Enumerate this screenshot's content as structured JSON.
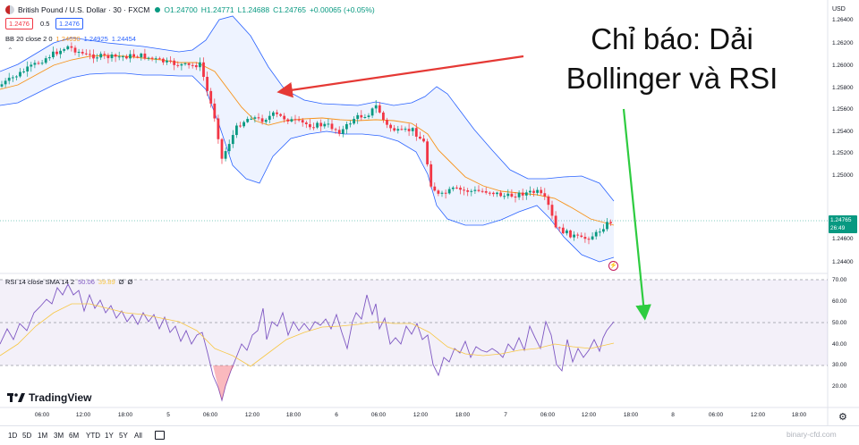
{
  "header": {
    "symbol_title": "British Pound / U.S. Dollar · 30 · FXCM",
    "ohlc_open": "O1.24700",
    "ohlc_high": "H1.24771",
    "ohlc_low": "L1.24688",
    "ohlc_close": "C1.24765",
    "ohlc_change": "+0.00065 (+0.05%)",
    "sell_price": "1.2476",
    "spread": "0.5",
    "buy_price": "1.2476",
    "bb_label": "BB 20 close 2 0",
    "bb_values": [
      "1.24690",
      "1.24925",
      "1.24454"
    ]
  },
  "rsi_legend": {
    "label": "RSI 14 close SMA 14 2",
    "rsi_value": "50.06",
    "sma_value": "39.89",
    "empty1": "Ø",
    "empty2": "Ø"
  },
  "annotation": {
    "line1": "Chỉ báo: Dải",
    "line2": "Bollinger và RSI"
  },
  "price_axis": {
    "currency": "USD",
    "labels": [
      "1.26400",
      "1.26200",
      "1.26000",
      "1.25800",
      "1.25600",
      "1.25400",
      "1.25200",
      "1.25000",
      "1.24600",
      "1.24400"
    ],
    "current_price": "1.24765",
    "countdown": "26:49"
  },
  "rsi_axis": {
    "labels": [
      "70.00",
      "60.00",
      "50.00",
      "40.00",
      "30.00",
      "20.00"
    ]
  },
  "time_axis": {
    "labels": [
      "06:00",
      "12:00",
      "18:00",
      "5",
      "06:00",
      "12:00",
      "18:00",
      "6",
      "06:00",
      "12:00",
      "18:00",
      "7",
      "06:00",
      "12:00",
      "18:00",
      "8",
      "06:00",
      "12:00",
      "18:00"
    ]
  },
  "range_buttons": [
    "1D",
    "5D",
    "1M",
    "3M",
    "6M",
    "YTD",
    "1Y",
    "5Y",
    "All"
  ],
  "brand": "TradingView",
  "watermark": "binary-cfd.com",
  "colors": {
    "bull": "#089981",
    "bear": "#f23645",
    "bb_basis": "#f7931a",
    "bb_band": "#2962ff",
    "rsi": "#7e57c2",
    "rsi_sma": "#f7c744",
    "arrow_red": "#e53935",
    "arrow_green": "#2ecc40"
  }
}
